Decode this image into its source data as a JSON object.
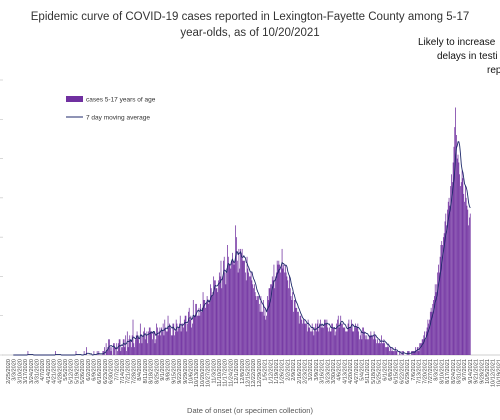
{
  "chart_data": {
    "type": "bar",
    "title_line1": "Epidemic curve of COVID-19 cases reported in Lexington-Fayette County among 5-17",
    "title_line2": "year-olds, as of 10/20/2021",
    "annotation_lines": [
      "Likely to increase",
      "delays in testi",
      "rep"
    ],
    "xlabel": "Date of onset (or specimen collection)",
    "ylabel": "",
    "grid": false,
    "legend_position": "top-left",
    "legend": {
      "bars_label": "cases 5-17 years of age",
      "line_label": "7 day moving average"
    },
    "colors": {
      "bars": "#7030A0",
      "line": "#1F2A6B"
    },
    "x_start": "2020-02-25",
    "x_end": "2021-10-20",
    "y_range": [
      0,
      70
    ],
    "date_tick_labels": [
      "2/25/2020",
      "3/10/2020",
      "3/24/2020",
      "4/7/2020",
      "4/21/2020",
      "5/5/2020",
      "5/19/2020",
      "6/2/2020",
      "6/16/2020",
      "6/30/2020",
      "7/14/2020",
      "7/28/2020",
      "8/11/2020",
      "8/25/2020",
      "9/8/2020",
      "9/22/2020",
      "10/6/2020",
      "10/20/2020",
      "11/3/2020",
      "11/17/2020",
      "12/1/2020",
      "12/15/2020",
      "12/29/2020",
      "1/12/2021",
      "1/26/2021",
      "2/9/2021",
      "2/23/2021",
      "3/9/2021",
      "3/23/2021",
      "4/6/2021",
      "4/20/2021",
      "5/4/2021",
      "5/18/2021",
      "6/1/2021",
      "6/15/2021",
      "6/29/2021",
      "7/13/2021",
      "7/27/2021",
      "8/10/2021",
      "8/24/2021",
      "9/7/2021",
      "9/21/2021",
      "10/5/2021",
      "10/19/2021"
    ],
    "series": [
      {
        "name": "cases 5-17 years of age",
        "values": [
          0,
          0,
          0,
          0,
          0,
          0,
          0,
          0,
          0,
          0,
          0,
          0,
          0,
          0,
          0,
          0,
          0,
          0,
          0,
          0,
          0,
          0,
          0,
          0,
          1,
          0,
          0,
          0,
          0,
          0,
          0,
          0,
          0,
          0,
          0,
          0,
          0,
          0,
          0,
          0,
          0,
          0,
          0,
          0,
          0,
          0,
          0,
          0,
          0,
          0,
          0,
          0,
          0,
          0,
          0,
          0,
          0,
          0,
          1,
          0,
          0,
          0,
          0,
          0,
          0,
          0,
          0,
          0,
          0,
          0,
          0,
          0,
          0,
          0,
          0,
          0,
          0,
          0,
          0,
          0,
          0,
          0,
          0,
          1,
          0,
          0,
          0,
          0,
          0,
          0,
          0,
          0,
          0,
          1,
          0,
          0,
          2,
          0,
          0,
          0,
          0,
          0,
          0,
          0,
          0,
          1,
          0,
          0,
          0,
          1,
          0,
          1,
          0,
          0,
          0,
          0,
          1,
          1,
          2,
          0,
          3,
          1,
          2,
          4,
          4,
          2,
          1,
          2,
          0,
          3,
          3,
          2,
          0,
          3,
          1,
          3,
          4,
          4,
          1,
          2,
          2,
          4,
          4,
          2,
          5,
          1,
          6,
          2,
          4,
          5,
          4,
          2,
          5,
          9,
          3,
          2,
          4,
          5,
          6,
          5,
          4,
          3,
          8,
          5,
          3,
          5,
          6,
          7,
          4,
          5,
          6,
          3,
          6,
          7,
          7,
          6,
          6,
          4,
          6,
          6,
          3,
          4,
          8,
          7,
          5,
          6,
          7,
          5,
          7,
          6,
          8,
          5,
          9,
          7,
          6,
          6,
          10,
          7,
          8,
          7,
          5,
          5,
          8,
          8,
          5,
          6,
          9,
          8,
          6,
          7,
          8,
          10,
          6,
          8,
          8,
          7,
          9,
          10,
          10,
          6,
          8,
          11,
          12,
          9,
          10,
          7,
          8,
          14,
          10,
          10,
          13,
          13,
          10,
          10,
          12,
          10,
          13,
          11,
          12,
          16,
          14,
          14,
          12,
          13,
          15,
          14,
          13,
          14,
          18,
          17,
          15,
          16,
          20,
          19,
          19,
          17,
          17,
          16,
          19,
          21,
          20,
          24,
          17,
          20,
          24,
          25,
          21,
          18,
          22,
          28,
          25,
          23,
          23,
          22,
          24,
          26,
          24,
          23,
          24,
          33,
          30,
          24,
          21,
          27,
          22,
          27,
          26,
          27,
          24,
          24,
          24,
          21,
          19,
          25,
          22,
          21,
          20,
          20,
          21,
          19,
          18,
          17,
          18,
          16,
          15,
          14,
          15,
          15,
          13,
          11,
          15,
          11,
          11,
          14,
          10,
          12,
          9,
          10,
          15,
          14,
          17,
          17,
          18,
          18,
          20,
          19,
          23,
          17,
          20,
          21,
          24,
          23,
          24,
          23,
          21,
          23,
          27,
          22,
          23,
          21,
          23,
          21,
          20,
          19,
          17,
          20,
          17,
          15,
          14,
          16,
          11,
          14,
          14,
          12,
          12,
          11,
          11,
          8,
          10,
          10,
          9,
          8,
          9,
          9,
          8,
          8,
          8,
          6,
          9,
          7,
          7,
          6,
          6,
          8,
          6,
          5,
          7,
          8,
          6,
          8,
          9,
          6,
          8,
          9,
          7,
          8,
          7,
          7,
          9,
          9,
          8,
          9,
          7,
          6,
          7,
          6,
          6,
          8,
          8,
          7,
          7,
          5,
          6,
          8,
          9,
          10,
          7,
          8,
          10,
          8,
          8,
          7,
          7,
          7,
          6,
          6,
          6,
          8,
          9,
          7,
          7,
          9,
          8,
          6,
          6,
          7,
          8,
          7,
          7,
          8,
          6,
          4,
          5,
          6,
          4,
          7,
          7,
          6,
          5,
          4,
          5,
          4,
          4,
          5,
          5,
          6,
          5,
          5,
          4,
          6,
          5,
          4,
          3,
          4,
          3,
          3,
          4,
          3,
          5,
          3,
          3,
          4,
          3,
          2,
          2,
          2,
          3,
          2,
          1,
          2,
          1,
          2,
          1,
          1,
          1,
          2,
          1,
          1,
          0,
          0,
          1,
          0,
          1,
          0,
          1,
          1,
          0,
          0,
          0,
          0,
          1,
          1,
          1,
          0,
          0,
          1,
          1,
          1,
          1,
          1,
          2,
          1,
          2,
          2,
          1,
          3,
          3,
          3,
          4,
          4,
          5,
          6,
          4,
          6,
          7,
          9,
          8,
          9,
          11,
          12,
          11,
          13,
          14,
          15,
          18,
          16,
          18,
          21,
          23,
          21,
          25,
          28,
          29,
          28,
          30,
          31,
          34,
          36,
          33,
          37,
          39,
          40,
          38,
          43,
          46,
          44,
          49,
          53,
          58,
          63,
          56,
          50,
          51,
          49,
          46,
          43,
          44,
          47,
          45,
          41,
          39,
          43,
          40,
          38,
          37,
          33,
          35,
          36
        ]
      },
      {
        "name": "7 day moving average",
        "values": []
      }
    ]
  }
}
